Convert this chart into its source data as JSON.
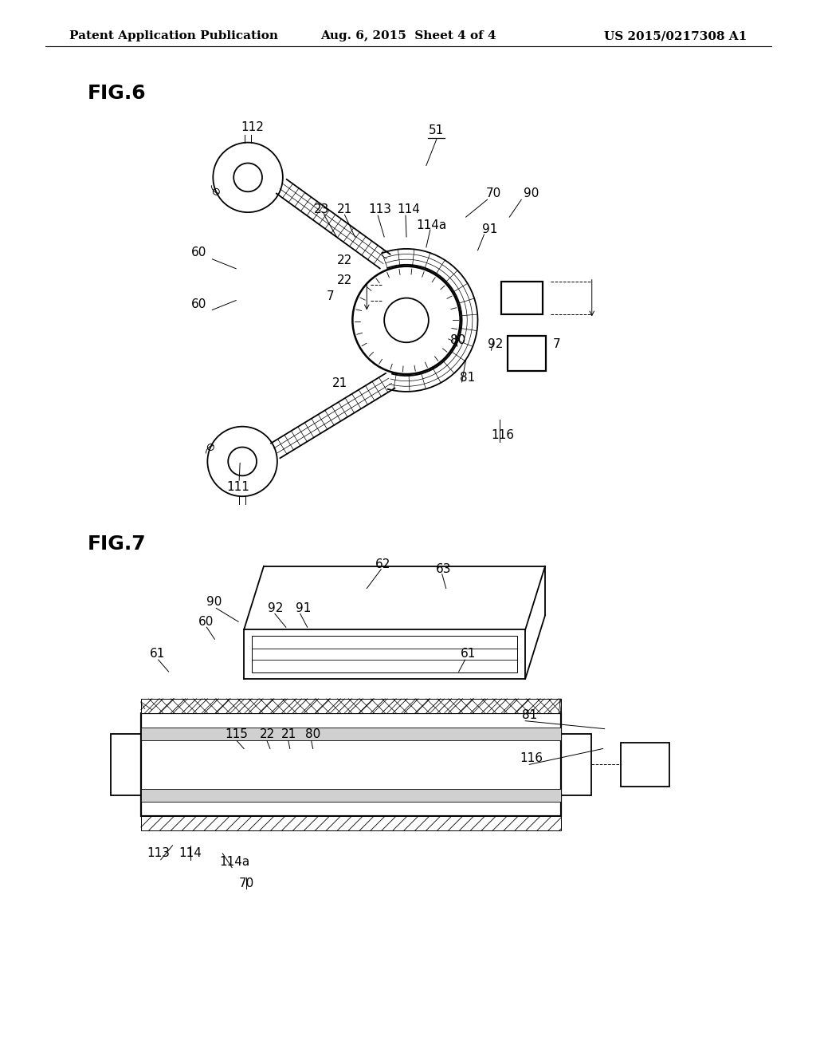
{
  "bg_color": "#ffffff",
  "line_color": "#000000",
  "header_left": "Patent Application Publication",
  "header_center": "Aug. 6, 2015  Sheet 4 of 4",
  "header_right": "US 2015/0217308 A1",
  "fig6_label": "FIG.6",
  "fig7_label": "FIG.7"
}
